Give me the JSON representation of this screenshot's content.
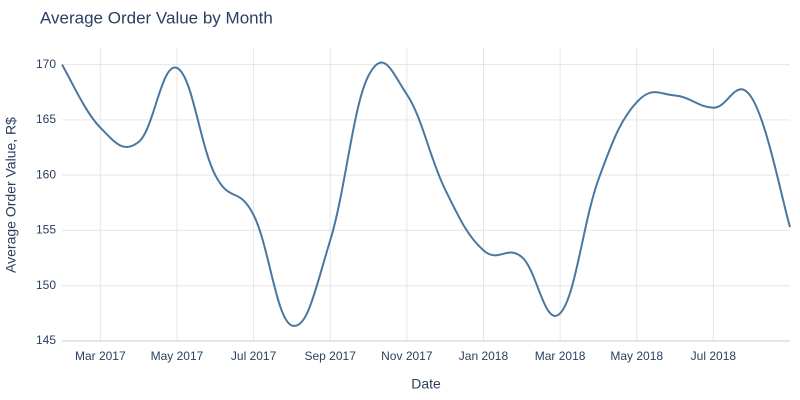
{
  "chart_data": {
    "type": "line",
    "title": "Average Order Value by Month",
    "x_label": "Date",
    "y_label": "Average Order Value, R$",
    "x": [
      "2017-02",
      "2017-03",
      "2017-04",
      "2017-05",
      "2017-06",
      "2017-07",
      "2017-08",
      "2017-09",
      "2017-10",
      "2017-11",
      "2017-12",
      "2018-01",
      "2018-02",
      "2018-03",
      "2018-04",
      "2018-05",
      "2018-06",
      "2018-07",
      "2018-08",
      "2018-09"
    ],
    "series": [
      {
        "name": "Average Order Value",
        "color": "#4a77a0",
        "values": [
          170.0,
          164.3,
          163.0,
          169.7,
          160.0,
          156.4,
          146.4,
          154.1,
          169.0,
          167.3,
          158.7,
          153.2,
          152.6,
          147.5,
          159.6,
          166.6,
          167.2,
          166.1,
          167.0,
          155.3
        ]
      }
    ],
    "xlim": [
      "2017-02",
      "2018-09"
    ],
    "xticks": [
      {
        "value": "2017-03",
        "label": "Mar 2017"
      },
      {
        "value": "2017-05",
        "label": "May 2017"
      },
      {
        "value": "2017-07",
        "label": "Jul 2017"
      },
      {
        "value": "2017-09",
        "label": "Sep 2017"
      },
      {
        "value": "2017-11",
        "label": "Nov 2017"
      },
      {
        "value": "2018-01",
        "label": "Jan 2018"
      },
      {
        "value": "2018-03",
        "label": "Mar 2018"
      },
      {
        "value": "2018-05",
        "label": "May 2018"
      },
      {
        "value": "2018-07",
        "label": "Jul 2018"
      }
    ],
    "ylim": [
      145,
      171.5
    ],
    "yticks": [
      145,
      150,
      155,
      160,
      165,
      170
    ],
    "grid": true
  }
}
